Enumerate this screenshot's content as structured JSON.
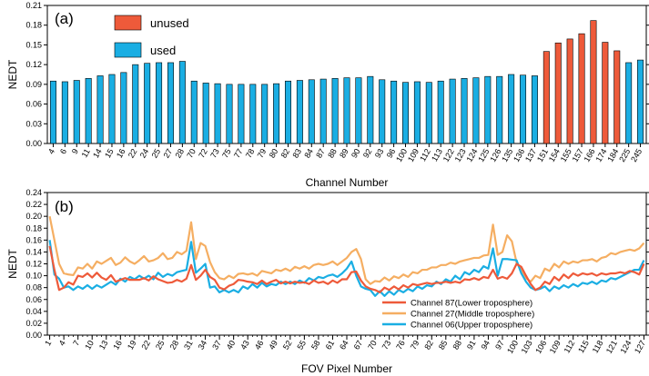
{
  "chart_data": [
    {
      "type": "bar",
      "panel_label": "(a)",
      "xlabel": "Channel Number",
      "ylabel": "NEDT",
      "ylim": [
        0,
        0.21
      ],
      "yticks": [
        "0.00",
        "0.03",
        "0.06",
        "0.09",
        "0.12",
        "0.15",
        "0.18",
        "0.21"
      ],
      "categories": [
        "4",
        "6",
        "9",
        "11",
        "14",
        "15",
        "16",
        "22",
        "24",
        "25",
        "27",
        "28",
        "70",
        "72",
        "73",
        "75",
        "77",
        "78",
        "79",
        "80",
        "82",
        "83",
        "84",
        "87",
        "88",
        "89",
        "90",
        "92",
        "93",
        "96",
        "100",
        "109",
        "112",
        "113",
        "122",
        "123",
        "124",
        "125",
        "126",
        "135",
        "136",
        "137",
        "151",
        "154",
        "155",
        "157",
        "166",
        "174",
        "184",
        "225",
        "245"
      ],
      "values": [
        0.095,
        0.094,
        0.096,
        0.099,
        0.103,
        0.105,
        0.108,
        0.12,
        0.122,
        0.123,
        0.123,
        0.125,
        0.095,
        0.092,
        0.091,
        0.09,
        0.09,
        0.09,
        0.09,
        0.091,
        0.095,
        0.096,
        0.097,
        0.098,
        0.099,
        0.1,
        0.1,
        0.102,
        0.097,
        0.095,
        0.093,
        0.094,
        0.093,
        0.095,
        0.098,
        0.099,
        0.1,
        0.102,
        0.102,
        0.105,
        0.104,
        0.103,
        0.14,
        0.153,
        0.159,
        0.167,
        0.187,
        0.154,
        0.141,
        0.123,
        0.127
      ],
      "status": [
        "used",
        "used",
        "used",
        "used",
        "used",
        "used",
        "used",
        "used",
        "used",
        "used",
        "used",
        "used",
        "used",
        "used",
        "used",
        "used",
        "used",
        "used",
        "used",
        "used",
        "used",
        "used",
        "used",
        "used",
        "used",
        "used",
        "used",
        "used",
        "used",
        "used",
        "used",
        "used",
        "used",
        "used",
        "used",
        "used",
        "used",
        "used",
        "used",
        "used",
        "used",
        "used",
        "unused",
        "unused",
        "unused",
        "unused",
        "unused",
        "unused",
        "unused",
        "used",
        "used"
      ],
      "legend": [
        {
          "name": "unused",
          "color": "#EE5A3A"
        },
        {
          "name": "used",
          "color": "#1AAEE3"
        }
      ]
    },
    {
      "type": "line",
      "panel_label": "(b)",
      "xlabel": "FOV Pixel Number",
      "ylabel": "NEDT",
      "ylim": [
        0,
        0.24
      ],
      "yticks": [
        "0.00",
        "0.02",
        "0.04",
        "0.06",
        "0.08",
        "0.10",
        "0.12",
        "0.14",
        "0.16",
        "0.18",
        "0.20",
        "0.22",
        "0.24"
      ],
      "xticks": [
        "1",
        "4",
        "7",
        "10",
        "13",
        "16",
        "19",
        "22",
        "25",
        "28",
        "31",
        "34",
        "37",
        "40",
        "43",
        "46",
        "49",
        "52",
        "55",
        "58",
        "61",
        "64",
        "67",
        "70",
        "73",
        "76",
        "79",
        "82",
        "85",
        "88",
        "91",
        "94",
        "97",
        "100",
        "103",
        "106",
        "109",
        "112",
        "115",
        "118",
        "121",
        "124",
        "127"
      ],
      "series": [
        {
          "name": "Channel 87(Lower troposphere)",
          "color": "#EE5A3A",
          "values": [
            0.15,
            0.11,
            0.076,
            0.08,
            0.089,
            0.085,
            0.1,
            0.098,
            0.104,
            0.097,
            0.105,
            0.097,
            0.093,
            0.101,
            0.09,
            0.093,
            0.096,
            0.093,
            0.093,
            0.093,
            0.096,
            0.092,
            0.099,
            0.094,
            0.091,
            0.088,
            0.089,
            0.093,
            0.09,
            0.095,
            0.118,
            0.093,
            0.1,
            0.11,
            0.098,
            0.093,
            0.08,
            0.077,
            0.083,
            0.086,
            0.093,
            0.092,
            0.09,
            0.089,
            0.086,
            0.092,
            0.086,
            0.09,
            0.093,
            0.087,
            0.09,
            0.087,
            0.09,
            0.088,
            0.089,
            0.086,
            0.092,
            0.088,
            0.09,
            0.086,
            0.092,
            0.088,
            0.094,
            0.094,
            0.106,
            0.107,
            0.092,
            0.082,
            0.078,
            0.076,
            0.072,
            0.08,
            0.076,
            0.082,
            0.077,
            0.084,
            0.08,
            0.086,
            0.084,
            0.086,
            0.088,
            0.086,
            0.088,
            0.088,
            0.09,
            0.088,
            0.09,
            0.088,
            0.094,
            0.093,
            0.096,
            0.093,
            0.098,
            0.096,
            0.11,
            0.095,
            0.098,
            0.095,
            0.104,
            0.12,
            0.115,
            0.1,
            0.086,
            0.076,
            0.08,
            0.09,
            0.086,
            0.098,
            0.092,
            0.102,
            0.096,
            0.104,
            0.1,
            0.104,
            0.102,
            0.104,
            0.1,
            0.104,
            0.102,
            0.104,
            0.104,
            0.106,
            0.104,
            0.108,
            0.106,
            0.102,
            0.12
          ]
        },
        {
          "name": "Channel 27(Middle troposphere)",
          "color": "#F5AE62",
          "values": [
            0.2,
            0.16,
            0.12,
            0.104,
            0.102,
            0.101,
            0.114,
            0.112,
            0.12,
            0.112,
            0.124,
            0.12,
            0.125,
            0.13,
            0.118,
            0.122,
            0.131,
            0.124,
            0.12,
            0.126,
            0.133,
            0.124,
            0.126,
            0.13,
            0.138,
            0.128,
            0.13,
            0.14,
            0.136,
            0.142,
            0.19,
            0.128,
            0.155,
            0.15,
            0.123,
            0.106,
            0.096,
            0.094,
            0.1,
            0.096,
            0.103,
            0.104,
            0.102,
            0.104,
            0.1,
            0.108,
            0.106,
            0.104,
            0.11,
            0.108,
            0.112,
            0.108,
            0.115,
            0.112,
            0.116,
            0.112,
            0.118,
            0.12,
            0.118,
            0.12,
            0.124,
            0.118,
            0.124,
            0.13,
            0.14,
            0.145,
            0.128,
            0.094,
            0.086,
            0.091,
            0.09,
            0.097,
            0.092,
            0.099,
            0.096,
            0.102,
            0.098,
            0.106,
            0.104,
            0.11,
            0.11,
            0.114,
            0.114,
            0.118,
            0.118,
            0.122,
            0.12,
            0.124,
            0.126,
            0.128,
            0.13,
            0.13,
            0.134,
            0.135,
            0.186,
            0.135,
            0.14,
            0.168,
            0.158,
            0.122,
            0.11,
            0.096,
            0.09,
            0.1,
            0.096,
            0.112,
            0.108,
            0.12,
            0.114,
            0.124,
            0.12,
            0.124,
            0.122,
            0.126,
            0.126,
            0.128,
            0.124,
            0.13,
            0.132,
            0.138,
            0.136,
            0.14,
            0.142,
            0.144,
            0.142,
            0.146,
            0.155
          ]
        },
        {
          "name": "Channel 06(Upper troposphere)",
          "color": "#1AAEE3",
          "values": [
            0.16,
            0.102,
            0.095,
            0.08,
            0.082,
            0.076,
            0.082,
            0.078,
            0.084,
            0.078,
            0.084,
            0.08,
            0.085,
            0.09,
            0.085,
            0.095,
            0.09,
            0.098,
            0.094,
            0.1,
            0.095,
            0.1,
            0.094,
            0.105,
            0.098,
            0.103,
            0.1,
            0.106,
            0.108,
            0.11,
            0.157,
            0.105,
            0.112,
            0.12,
            0.08,
            0.082,
            0.072,
            0.076,
            0.072,
            0.076,
            0.072,
            0.082,
            0.078,
            0.086,
            0.08,
            0.088,
            0.082,
            0.086,
            0.084,
            0.09,
            0.086,
            0.09,
            0.086,
            0.092,
            0.088,
            0.096,
            0.092,
            0.098,
            0.096,
            0.1,
            0.102,
            0.098,
            0.104,
            0.112,
            0.124,
            0.1,
            0.082,
            0.078,
            0.076,
            0.066,
            0.074,
            0.066,
            0.074,
            0.068,
            0.076,
            0.072,
            0.078,
            0.074,
            0.082,
            0.078,
            0.084,
            0.082,
            0.09,
            0.086,
            0.094,
            0.09,
            0.1,
            0.094,
            0.106,
            0.102,
            0.11,
            0.106,
            0.116,
            0.112,
            0.146,
            0.1,
            0.128,
            0.128,
            0.127,
            0.126,
            0.104,
            0.09,
            0.08,
            0.076,
            0.078,
            0.082,
            0.074,
            0.082,
            0.078,
            0.084,
            0.08,
            0.086,
            0.082,
            0.088,
            0.086,
            0.09,
            0.086,
            0.092,
            0.09,
            0.096,
            0.094,
            0.098,
            0.102,
            0.106,
            0.11,
            0.11,
            0.126
          ]
        }
      ]
    }
  ]
}
